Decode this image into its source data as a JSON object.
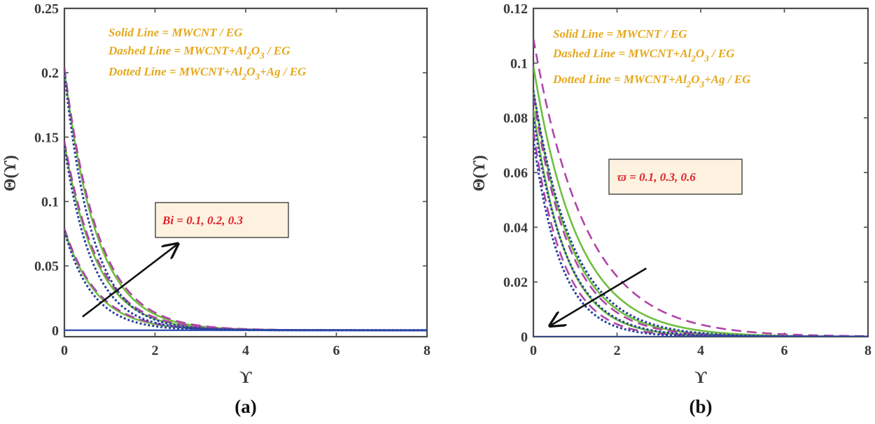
{
  "chart_data": [
    {
      "type": "line",
      "panel_label": "(a)",
      "xlabel": "ϒ",
      "ylabel": "Θ(ϒ)",
      "xlim": [
        0,
        8
      ],
      "ylim": [
        -0.005,
        0.25
      ],
      "xticks": [
        0,
        2,
        4,
        6,
        8
      ],
      "xtick_labels": [
        "0",
        "2",
        "4",
        "6",
        "8"
      ],
      "yticks": [
        0,
        0.05,
        0.1,
        0.15,
        0.2,
        0.25
      ],
      "ytick_labels": [
        "0",
        "0.05",
        "0.1",
        "0.15",
        "0.2",
        "0.25"
      ],
      "legend_lines": [
        {
          "prefix": "Solid Line = MWCNT / EG"
        },
        {
          "prefix": "Dashed Line = MWCNT+Al",
          "sub1": "2",
          "mid": "O",
          "sub2": "3",
          "suffix": " / EG"
        },
        {
          "prefix": "Dotted Line = MWCNT+Al",
          "sub1": "2",
          "mid": "O",
          "sub2": "3",
          "suffix": "+Ag / EG"
        }
      ],
      "annotation": "Bi = 0.1, 0.2, 0.3",
      "arrow": {
        "from": [
          0.4,
          0.0105
        ],
        "to": [
          2.5,
          0.067
        ]
      },
      "series": [
        {
          "name": "MWCNT / EG, Bi = 0.1",
          "style": "solid",
          "color": "#6fbf3f",
          "y0": 0.078,
          "decay": 1.4
        },
        {
          "name": "MWCNT / EG, Bi = 0.2",
          "style": "solid",
          "color": "#6fbf3f",
          "y0": 0.145,
          "decay": 1.4
        },
        {
          "name": "MWCNT / EG, Bi = 0.3",
          "style": "solid",
          "color": "#6fbf3f",
          "y0": 0.202,
          "decay": 1.4
        },
        {
          "name": "MWCNT+Al2O3 / EG, Bi = 0.1",
          "style": "dashed",
          "color": "#b044a8",
          "y0": 0.079,
          "decay": 1.35
        },
        {
          "name": "MWCNT+Al2O3 / EG, Bi = 0.2",
          "style": "dashed",
          "color": "#b044a8",
          "y0": 0.147,
          "decay": 1.35
        },
        {
          "name": "MWCNT+Al2O3 / EG, Bi = 0.3",
          "style": "dashed",
          "color": "#b044a8",
          "y0": 0.204,
          "decay": 1.35
        },
        {
          "name": "MWCNT+Al2O3+Ag / EG, Bi = 0.1",
          "style": "dotted",
          "color": "#2a3f9e",
          "y0": 0.077,
          "decay": 1.6
        },
        {
          "name": "MWCNT+Al2O3+Ag / EG, Bi = 0.2",
          "style": "dotted",
          "color": "#2a3f9e",
          "y0": 0.143,
          "decay": 1.6
        },
        {
          "name": "MWCNT+Al2O3+Ag / EG, Bi = 0.3",
          "style": "dotted",
          "color": "#2a3f9e",
          "y0": 0.2,
          "decay": 1.6
        }
      ]
    },
    {
      "type": "line",
      "panel_label": "(b)",
      "xlabel": "ϒ",
      "ylabel": "Θ(ϒ)",
      "xlim": [
        0,
        8
      ],
      "ylim": [
        0,
        0.12
      ],
      "xticks": [
        0,
        2,
        4,
        6,
        8
      ],
      "xtick_labels": [
        "0",
        "2",
        "4",
        "6",
        "8"
      ],
      "yticks": [
        0,
        0.02,
        0.04,
        0.06,
        0.08,
        0.1,
        0.12
      ],
      "ytick_labels": [
        "0",
        "0.02",
        "0.04",
        "0.06",
        "0.08",
        "0.1",
        "0.12"
      ],
      "legend_lines": [
        {
          "prefix": "Solid Line = MWCNT / EG"
        },
        {
          "prefix": "Dashed Line = MWCNT+Al",
          "sub1": "2",
          "mid": "O",
          "sub2": "3",
          "suffix": " / EG"
        },
        {
          "prefix": "Dotted Line = MWCNT+Al",
          "sub1": "2",
          "mid": "O",
          "sub2": "3",
          "suffix": "+Ag / EG"
        }
      ],
      "annotation": "ϖ = 0.1, 0.3, 0.6",
      "arrow": {
        "from": [
          2.7,
          0.025
        ],
        "to": [
          0.4,
          0.004
        ]
      },
      "series": [
        {
          "name": "MWCNT / EG, ϖ = 0.1",
          "style": "solid",
          "color": "#6fbf3f",
          "y0": 0.099,
          "decay": 0.95
        },
        {
          "name": "MWCNT / EG, ϖ = 0.3",
          "style": "solid",
          "color": "#6fbf3f",
          "y0": 0.09,
          "decay": 1.1
        },
        {
          "name": "MWCNT / EG, ϖ = 0.6",
          "style": "solid",
          "color": "#6fbf3f",
          "y0": 0.083,
          "decay": 1.3
        },
        {
          "name": "MWCNT+Al2O3 / EG, ϖ = 0.1",
          "style": "dashed",
          "color": "#b044a8",
          "y0": 0.109,
          "decay": 0.8
        },
        {
          "name": "MWCNT+Al2O3 / EG, ϖ = 0.3",
          "style": "dashed",
          "color": "#b044a8",
          "y0": 0.088,
          "decay": 1.15
        },
        {
          "name": "MWCNT+Al2O3 / EG, ϖ = 0.6",
          "style": "dashed",
          "color": "#b044a8",
          "y0": 0.075,
          "decay": 1.4
        },
        {
          "name": "MWCNT+Al2O3+Ag / EG, ϖ = 0.1",
          "style": "dotted",
          "color": "#2a3f9e",
          "y0": 0.09,
          "decay": 1.05
        },
        {
          "name": "MWCNT+Al2O3+Ag / EG, ϖ = 0.3",
          "style": "dotted",
          "color": "#2a3f9e",
          "y0": 0.08,
          "decay": 1.25
        },
        {
          "name": "MWCNT+Al2O3+Ag / EG, ϖ = 0.6",
          "style": "dotted",
          "color": "#2a3f9e",
          "y0": 0.072,
          "decay": 1.5
        }
      ]
    }
  ]
}
